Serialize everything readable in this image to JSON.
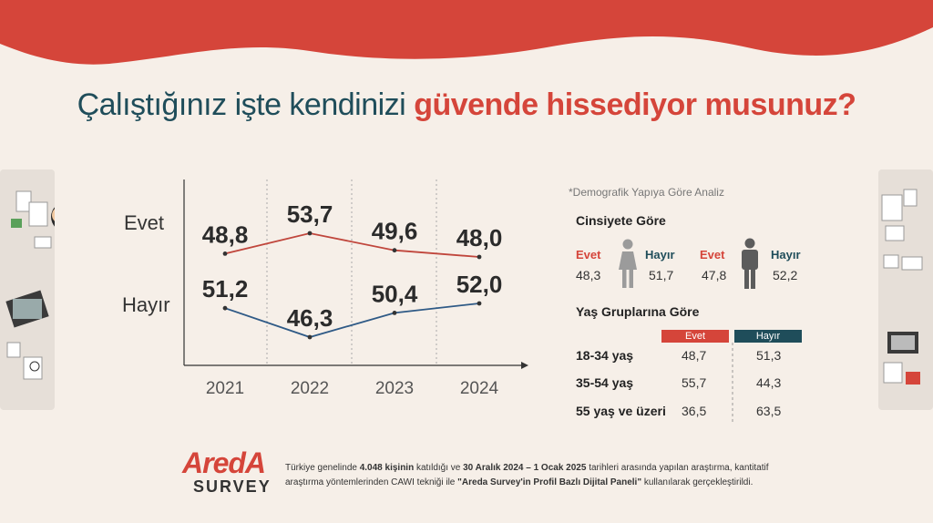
{
  "title": {
    "part1": "Çalıştığınız işte kendinizi ",
    "part2": "güvende hissediyor musunuz?"
  },
  "colors": {
    "red": "#d5453a",
    "teal": "#1f4d5a",
    "evet_line": "#c0463c",
    "hayir_line": "#2f5a86",
    "bg": "#f6efe8"
  },
  "chart_data": {
    "type": "line",
    "x": [
      "2021",
      "2022",
      "2023",
      "2024"
    ],
    "series": [
      {
        "name": "Evet",
        "values": [
          48.8,
          53.7,
          49.6,
          48.0
        ],
        "labels": [
          "48,8",
          "53,7",
          "49,6",
          "48,0"
        ]
      },
      {
        "name": "Hayır",
        "values": [
          51.2,
          46.3,
          50.4,
          52.0
        ],
        "labels": [
          "51,2",
          "46,3",
          "50,4",
          "52,0"
        ]
      }
    ],
    "title": "",
    "xlabel": "",
    "ylabel": "",
    "grid": "vertical dashed"
  },
  "demographics": {
    "note": "*Demografik Yapıya Göre Analiz",
    "gender_title": "Cinsiyete Göre",
    "female": {
      "evet_label": "Evet",
      "evet": "48,3",
      "hayir_label": "Hayır",
      "hayir": "51,7"
    },
    "male": {
      "evet_label": "Evet",
      "evet": "47,8",
      "hayir_label": "Hayır",
      "hayir": "52,2"
    },
    "age_title": "Yaş Gruplarına Göre",
    "col_evet": "Evet",
    "col_hayir": "Hayır",
    "rows": [
      {
        "group": "18-34 yaş",
        "evet": "48,7",
        "hayir": "51,3"
      },
      {
        "group": "35-54 yaş",
        "evet": "55,7",
        "hayir": "44,3"
      },
      {
        "group": "55 yaş ve üzeri",
        "evet": "36,5",
        "hayir": "63,5"
      }
    ]
  },
  "footer": {
    "t1": "Türkiye genelinde ",
    "b1": "4.048 kişinin",
    "t2": " katıldığı ve ",
    "b2": "30 Aralık 2024 – 1 Ocak 2025",
    "t3": " tarihleri arasında yapılan araştırma, kantitatif araştırma yöntemlerinden CAWI tekniği ile ",
    "b3": "\"Areda  Survey'in Profil Bazlı Dijital Paneli\"",
    "t4": " kullanılarak gerçekleştirildi."
  },
  "logo": {
    "brand": "AredA",
    "sub": "SURVEY"
  }
}
